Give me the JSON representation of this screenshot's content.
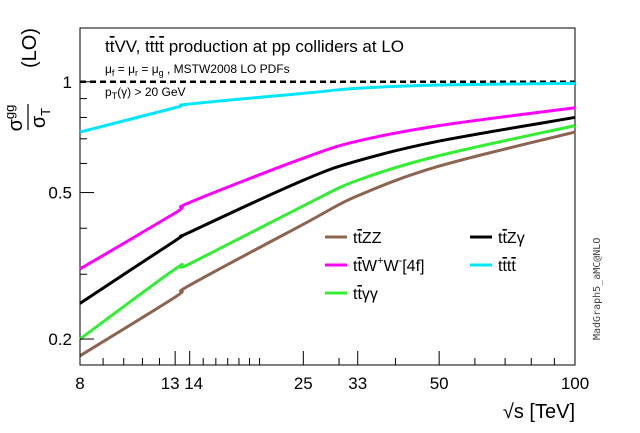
{
  "chart_data": {
    "type": "line",
    "title": "tt̄VV, tt̄tt̄ production at pp colliders at LO",
    "annotations": [
      "μ_f = μ_r = μ_g , MSTW2008 LO PDFs",
      "p_T(γ) > 20 GeV"
    ],
    "watermark": "MadGraph5_aMC@NLO",
    "xlabel": "√s [TeV]",
    "ylabel": "σ_gg / σ_T (LO)",
    "xscale": "log",
    "yscale": "log",
    "xlim": [
      8,
      100
    ],
    "ylim": [
      0.17,
      1.4
    ],
    "xticks": [
      8,
      13,
      14,
      25,
      33,
      50,
      100
    ],
    "yticks": [
      0.2,
      0.5,
      1
    ],
    "reference_line": {
      "y": 1,
      "style": "dashed",
      "color": "#000000"
    },
    "x": [
      8,
      13,
      14,
      25,
      33,
      50,
      100
    ],
    "series": [
      {
        "name": "tt̄ZZ",
        "color": "#8c6450",
        "values": [
          0.18,
          0.26,
          0.28,
          0.41,
          0.49,
          0.59,
          0.73
        ]
      },
      {
        "name": "tt̄Zγ",
        "color": "#000000",
        "values": [
          0.25,
          0.37,
          0.39,
          0.54,
          0.61,
          0.69,
          0.8
        ]
      },
      {
        "name": "tt̄W⁺W⁻[4f]",
        "color": "#ff00ff",
        "values": [
          0.31,
          0.44,
          0.47,
          0.62,
          0.69,
          0.76,
          0.85
        ]
      },
      {
        "name": "tt̄tt̄",
        "color": "#00e6ff",
        "values": [
          0.73,
          0.85,
          0.87,
          0.93,
          0.96,
          0.98,
          0.99
        ]
      },
      {
        "name": "tt̄γγ",
        "color": "#33ee33",
        "values": [
          0.2,
          0.31,
          0.32,
          0.46,
          0.54,
          0.63,
          0.76
        ]
      }
    ],
    "legend": [
      {
        "series": 0,
        "label_main": "tt̄ZZ"
      },
      {
        "series": 1,
        "label_main": "tt̄Zγ"
      },
      {
        "series": 2,
        "label_main": "tt̄W",
        "sup1": "+",
        "mid": "W",
        "sup2": "-",
        "suffix": "[4f]"
      },
      {
        "series": 3,
        "label_main": "tt̄tt̄"
      },
      {
        "series": 4,
        "label_main": "tt̄γγ"
      }
    ],
    "legend_position": "lower-right"
  }
}
